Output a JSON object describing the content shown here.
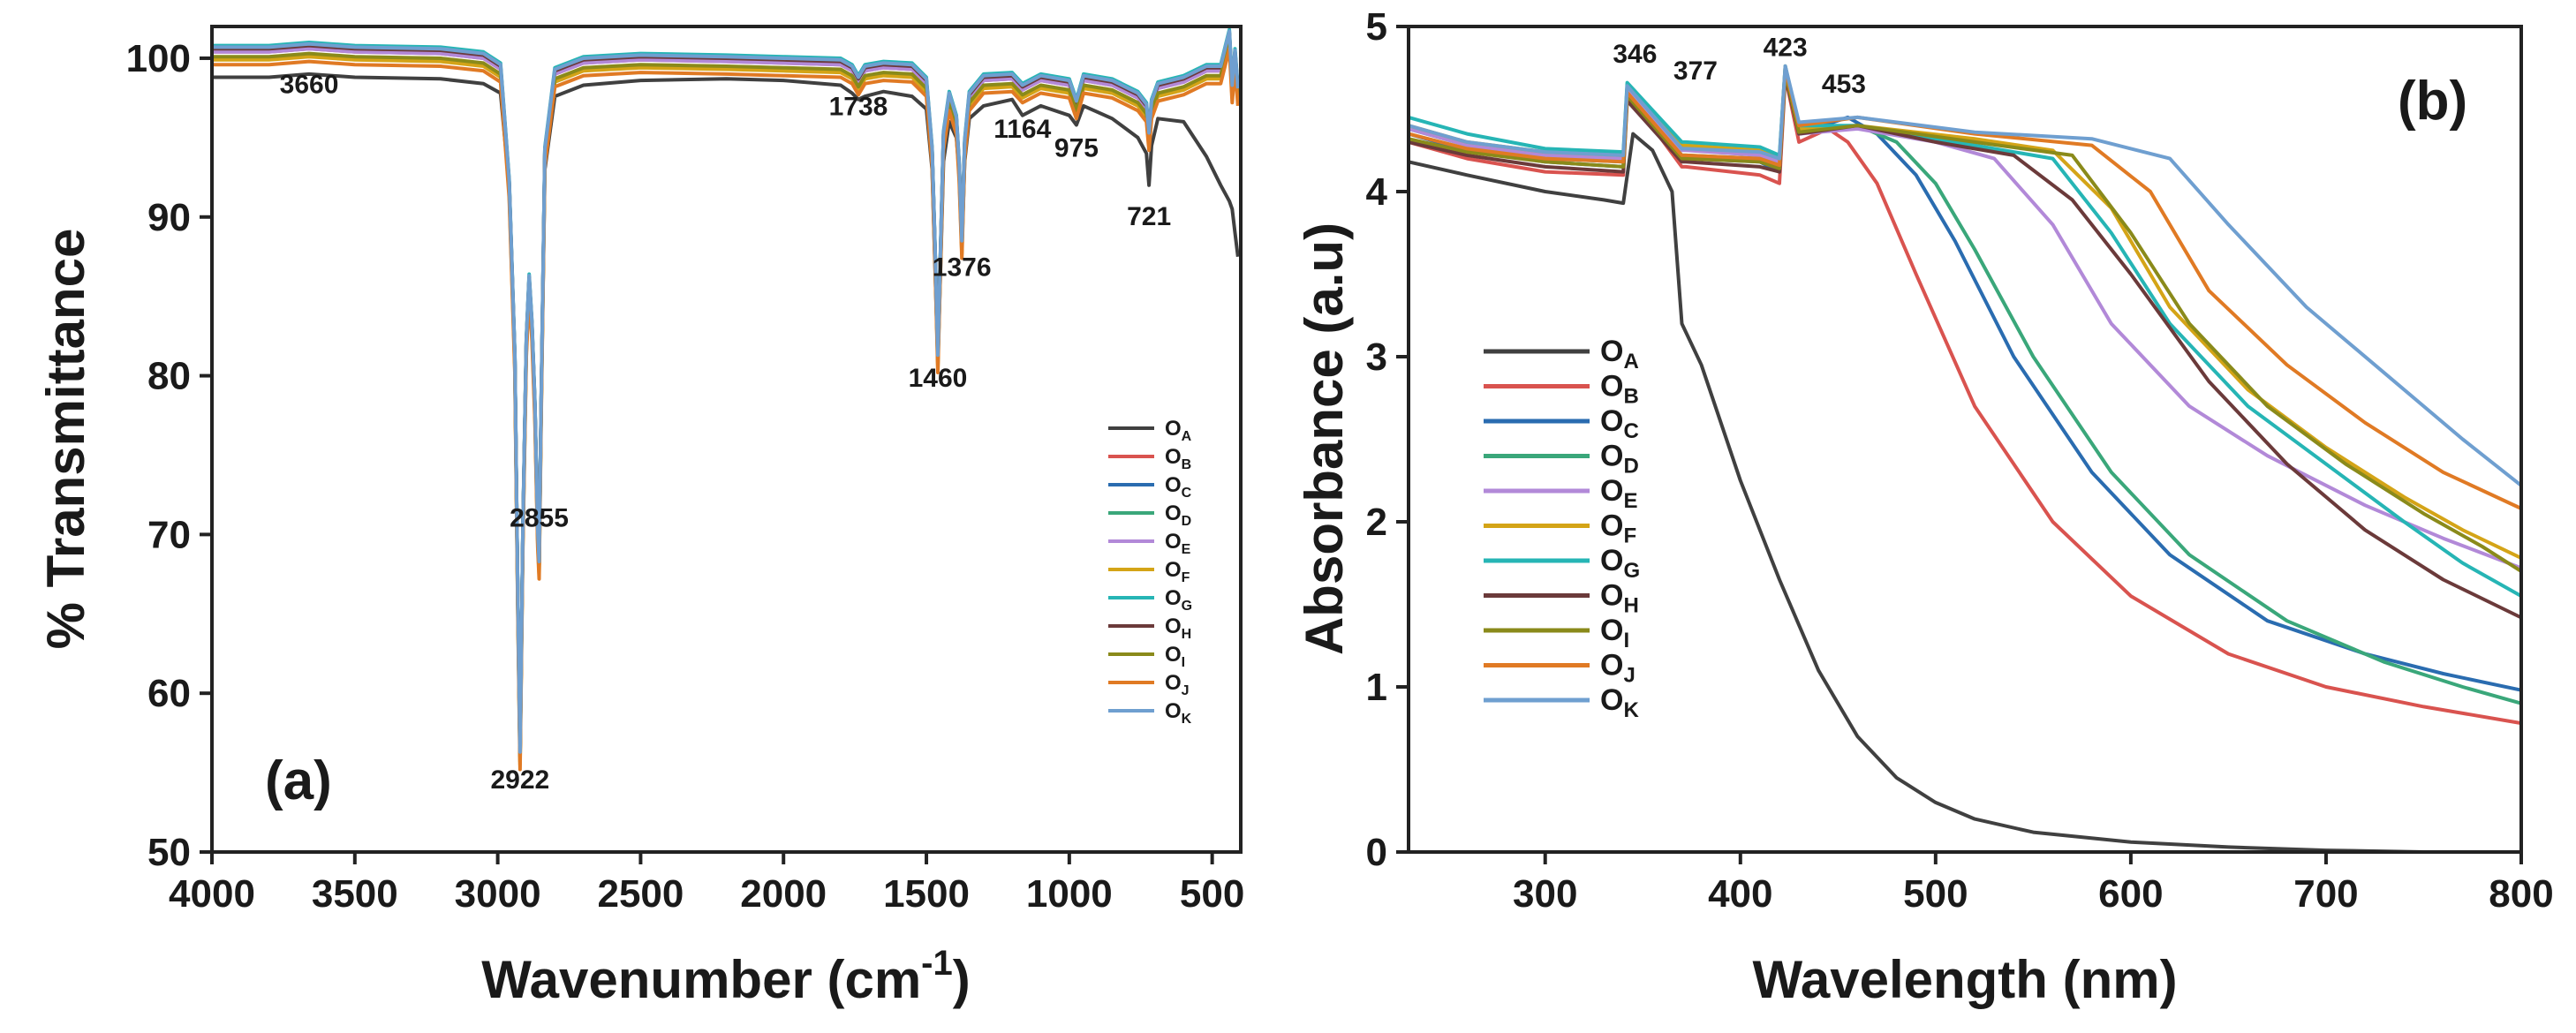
{
  "chart_data": [
    {
      "panel": "(a)",
      "type": "line",
      "title": "",
      "xlabel": "Wavenumber (cm",
      "xlabel_sup": "-1",
      "xlabel_end": ")",
      "ylabel": "% Transmittance",
      "xlim": [
        4000,
        400
      ],
      "ylim": [
        50,
        102
      ],
      "xticks": [
        4000,
        3500,
        3000,
        2500,
        2000,
        1500,
        1000,
        500
      ],
      "yticks": [
        50,
        60,
        70,
        80,
        90,
        100
      ],
      "legend_position": "lower-right",
      "peak_annotations": [
        {
          "text": "3660",
          "x": 3660,
          "y": 97.8
        },
        {
          "text": "2922",
          "x": 2922,
          "y": 54.0
        },
        {
          "text": "2855",
          "x": 2855,
          "y": 70.5
        },
        {
          "text": "1738",
          "x": 1738,
          "y": 96.4
        },
        {
          "text": "1460",
          "x": 1460,
          "y": 79.3
        },
        {
          "text": "1376",
          "x": 1376,
          "y": 86.3
        },
        {
          "text": "1164",
          "x": 1164,
          "y": 95.0
        },
        {
          "text": "975",
          "x": 975,
          "y": 93.8
        },
        {
          "text": "721",
          "x": 721,
          "y": 89.5
        }
      ],
      "series": [
        {
          "name": "O",
          "sub": "A",
          "color": "#404040",
          "offset": -1.6,
          "values_ref": "ftir_A"
        },
        {
          "name": "O",
          "sub": "B",
          "color": "#d9534f",
          "offset": 0.0,
          "values_ref": "ftir"
        },
        {
          "name": "O",
          "sub": "C",
          "color": "#2a6cb0",
          "offset": 0.1,
          "values_ref": "ftir"
        },
        {
          "name": "O",
          "sub": "D",
          "color": "#3aa77a",
          "offset": 0.2,
          "values_ref": "ftir"
        },
        {
          "name": "O",
          "sub": "E",
          "color": "#b289d8",
          "offset": 0.0,
          "values_ref": "ftir"
        },
        {
          "name": "O",
          "sub": "F",
          "color": "#d4a417",
          "offset": -0.5,
          "values_ref": "ftir"
        },
        {
          "name": "O",
          "sub": "G",
          "color": "#26b5b5",
          "offset": 0.4,
          "values_ref": "ftir"
        },
        {
          "name": "O",
          "sub": "H",
          "color": "#6b3a3a",
          "offset": 0.2,
          "values_ref": "ftir"
        },
        {
          "name": "O",
          "sub": "I",
          "color": "#8a8a1a",
          "offset": -0.3,
          "values_ref": "ftir"
        },
        {
          "name": "O",
          "sub": "J",
          "color": "#e07a24",
          "offset": -0.8,
          "values_ref": "ftir"
        },
        {
          "name": "O",
          "sub": "K",
          "color": "#6f9fd0",
          "offset": 0.3,
          "values_ref": "ftir"
        }
      ],
      "ftir_base": {
        "x": [
          4000,
          3800,
          3660,
          3500,
          3200,
          3050,
          2990,
          2960,
          2940,
          2930,
          2922,
          2912,
          2900,
          2890,
          2880,
          2870,
          2860,
          2855,
          2848,
          2835,
          2800,
          2700,
          2500,
          2200,
          2000,
          1800,
          1760,
          1738,
          1715,
          1650,
          1550,
          1500,
          1480,
          1470,
          1460,
          1450,
          1440,
          1420,
          1395,
          1385,
          1376,
          1366,
          1350,
          1300,
          1200,
          1164,
          1100,
          1000,
          975,
          950,
          850,
          760,
          730,
          721,
          712,
          690,
          600,
          520,
          470,
          440,
          430,
          420,
          410
        ],
        "y": [
          100.4,
          100.4,
          100.6,
          100.4,
          100.3,
          100.0,
          99.3,
          92.0,
          81.0,
          66.0,
          56.0,
          70.0,
          82.0,
          86.0,
          83.0,
          78.0,
          70.0,
          68.0,
          78.0,
          94.0,
          99.0,
          99.7,
          99.9,
          99.8,
          99.7,
          99.6,
          99.2,
          98.5,
          99.2,
          99.4,
          99.3,
          98.4,
          94.0,
          88.0,
          81.0,
          88.0,
          95.0,
          97.5,
          96.0,
          93.0,
          88.2,
          94.5,
          97.5,
          98.6,
          98.7,
          98.0,
          98.6,
          98.3,
          97.0,
          98.6,
          98.3,
          97.5,
          96.8,
          95.0,
          97.0,
          98.1,
          98.5,
          99.2,
          99.2,
          101.4,
          98.0,
          100.2,
          97.8
        ]
      },
      "ftir_A": {
        "x": [
          4000,
          3800,
          3660,
          3500,
          3200,
          3050,
          2990,
          2960,
          2940,
          2930,
          2922,
          2912,
          2900,
          2890,
          2880,
          2870,
          2860,
          2855,
          2848,
          2835,
          2800,
          2700,
          2500,
          2200,
          2000,
          1800,
          1760,
          1738,
          1715,
          1650,
          1550,
          1500,
          1480,
          1470,
          1460,
          1450,
          1440,
          1420,
          1395,
          1385,
          1376,
          1366,
          1350,
          1300,
          1200,
          1164,
          1100,
          1000,
          975,
          950,
          850,
          760,
          730,
          721,
          712,
          690,
          600,
          520,
          470,
          440,
          430,
          420,
          410
        ],
        "y": [
          98.8,
          98.8,
          99.0,
          98.8,
          98.7,
          98.4,
          97.8,
          92.0,
          81.0,
          66.0,
          56.0,
          70.0,
          82.0,
          86.0,
          83.0,
          78.0,
          70.0,
          68.0,
          78.0,
          93.0,
          97.6,
          98.3,
          98.6,
          98.7,
          98.6,
          98.3,
          97.8,
          97.4,
          97.6,
          97.9,
          97.6,
          96.8,
          93.0,
          87.0,
          81.0,
          87.0,
          93.5,
          96.0,
          95.0,
          92.8,
          88.2,
          93.5,
          96.2,
          97.0,
          97.4,
          96.4,
          97.0,
          96.4,
          95.8,
          97.0,
          96.2,
          95.0,
          94.0,
          92.0,
          94.5,
          96.2,
          96.0,
          93.8,
          92.0,
          91.0,
          90.5,
          89.0,
          87.5
        ]
      }
    },
    {
      "panel": "(b)",
      "type": "line",
      "title": "",
      "xlabel": "Wavelength (nm)",
      "ylabel": "Absorbance (a.u)",
      "xlim": [
        230,
        800
      ],
      "ylim": [
        0,
        5
      ],
      "xticks": [
        300,
        400,
        500,
        600,
        700,
        800
      ],
      "yticks": [
        0,
        1,
        2,
        3,
        4,
        5
      ],
      "legend_position": "middle-left",
      "peak_annotations": [
        {
          "text": "346",
          "x": 346,
          "y": 4.78
        },
        {
          "text": "377",
          "x": 377,
          "y": 4.68
        },
        {
          "text": "423",
          "x": 423,
          "y": 4.82
        },
        {
          "text": "453",
          "x": 453,
          "y": 4.6
        }
      ],
      "series": [
        {
          "name": "O",
          "sub": "A",
          "color": "#404040",
          "x": [
            230,
            260,
            300,
            330,
            340,
            345,
            355,
            365,
            370,
            380,
            400,
            420,
            440,
            460,
            480,
            500,
            520,
            550,
            600,
            650,
            700,
            750,
            800
          ],
          "y": [
            4.18,
            4.1,
            4.0,
            3.95,
            3.93,
            4.35,
            4.25,
            4.0,
            3.2,
            2.95,
            2.25,
            1.65,
            1.1,
            0.7,
            0.45,
            0.3,
            0.2,
            0.12,
            0.06,
            0.03,
            0.01,
            0.0,
            0.0
          ]
        },
        {
          "name": "O",
          "sub": "B",
          "color": "#d9534f",
          "x": [
            230,
            260,
            300,
            340,
            342,
            370,
            372,
            410,
            420,
            423,
            430,
            445,
            455,
            470,
            490,
            520,
            560,
            600,
            650,
            700,
            750,
            800
          ],
          "y": [
            4.3,
            4.2,
            4.12,
            4.1,
            4.6,
            4.15,
            4.15,
            4.1,
            4.05,
            4.7,
            4.3,
            4.38,
            4.3,
            4.05,
            3.5,
            2.7,
            2.0,
            1.55,
            1.2,
            1.0,
            0.88,
            0.78
          ]
        },
        {
          "name": "O",
          "sub": "C",
          "color": "#2a6cb0",
          "x": [
            230,
            260,
            300,
            340,
            342,
            370,
            372,
            410,
            420,
            423,
            430,
            455,
            470,
            490,
            510,
            540,
            580,
            620,
            670,
            720,
            760,
            800
          ],
          "y": [
            4.35,
            4.25,
            4.18,
            4.15,
            4.6,
            4.2,
            4.2,
            4.18,
            4.12,
            4.72,
            4.35,
            4.45,
            4.35,
            4.1,
            3.7,
            3.0,
            2.3,
            1.8,
            1.4,
            1.2,
            1.08,
            0.98
          ]
        },
        {
          "name": "O",
          "sub": "D",
          "color": "#3aa77a",
          "x": [
            230,
            260,
            300,
            340,
            342,
            370,
            372,
            410,
            420,
            423,
            430,
            460,
            480,
            500,
            520,
            550,
            590,
            630,
            680,
            730,
            770,
            800
          ],
          "y": [
            4.38,
            4.28,
            4.2,
            4.18,
            4.62,
            4.22,
            4.22,
            4.2,
            4.15,
            4.74,
            4.35,
            4.4,
            4.3,
            4.05,
            3.65,
            3.0,
            2.3,
            1.8,
            1.4,
            1.15,
            1.0,
            0.9
          ]
        },
        {
          "name": "O",
          "sub": "E",
          "color": "#b289d8",
          "x": [
            230,
            260,
            300,
            340,
            342,
            370,
            372,
            410,
            420,
            423,
            430,
            460,
            500,
            530,
            560,
            590,
            630,
            670,
            720,
            760,
            800
          ],
          "y": [
            4.38,
            4.28,
            4.22,
            4.2,
            4.62,
            4.25,
            4.25,
            4.22,
            4.18,
            4.74,
            4.35,
            4.38,
            4.3,
            4.2,
            3.8,
            3.2,
            2.7,
            2.4,
            2.1,
            1.9,
            1.72
          ]
        },
        {
          "name": "O",
          "sub": "F",
          "color": "#d4a417",
          "x": [
            230,
            260,
            300,
            340,
            342,
            370,
            372,
            410,
            420,
            423,
            430,
            460,
            520,
            560,
            590,
            620,
            660,
            700,
            740,
            770,
            800
          ],
          "y": [
            4.4,
            4.3,
            4.24,
            4.22,
            4.64,
            4.28,
            4.28,
            4.25,
            4.2,
            4.76,
            4.38,
            4.4,
            4.32,
            4.25,
            3.9,
            3.3,
            2.8,
            2.45,
            2.15,
            1.95,
            1.78
          ]
        },
        {
          "name": "O",
          "sub": "G",
          "color": "#26b5b5",
          "x": [
            230,
            260,
            300,
            340,
            342,
            370,
            372,
            410,
            420,
            423,
            430,
            460,
            520,
            560,
            590,
            620,
            660,
            700,
            740,
            770,
            800
          ],
          "y": [
            4.45,
            4.35,
            4.26,
            4.24,
            4.66,
            4.3,
            4.3,
            4.27,
            4.22,
            4.76,
            4.4,
            4.4,
            4.28,
            4.2,
            3.75,
            3.2,
            2.7,
            2.35,
            2.0,
            1.75,
            1.55
          ]
        },
        {
          "name": "O",
          "sub": "H",
          "color": "#6b3a3a",
          "x": [
            230,
            260,
            300,
            340,
            342,
            370,
            372,
            410,
            420,
            423,
            430,
            460,
            500,
            540,
            570,
            600,
            640,
            680,
            720,
            760,
            800
          ],
          "y": [
            4.3,
            4.22,
            4.15,
            4.12,
            4.55,
            4.18,
            4.18,
            4.15,
            4.12,
            4.7,
            4.35,
            4.4,
            4.3,
            4.22,
            3.95,
            3.5,
            2.85,
            2.35,
            1.95,
            1.65,
            1.42
          ]
        },
        {
          "name": "O",
          "sub": "I",
          "color": "#8a8a1a",
          "x": [
            230,
            260,
            300,
            340,
            342,
            370,
            372,
            410,
            420,
            423,
            430,
            460,
            520,
            570,
            600,
            630,
            670,
            710,
            750,
            780,
            800
          ],
          "y": [
            4.32,
            4.24,
            4.18,
            4.15,
            4.58,
            4.2,
            4.2,
            4.18,
            4.14,
            4.72,
            4.36,
            4.4,
            4.3,
            4.22,
            3.75,
            3.2,
            2.7,
            2.35,
            2.05,
            1.85,
            1.7
          ]
        },
        {
          "name": "O",
          "sub": "J",
          "color": "#e07a24",
          "x": [
            230,
            260,
            300,
            340,
            342,
            370,
            372,
            410,
            420,
            423,
            430,
            460,
            520,
            580,
            610,
            640,
            680,
            720,
            760,
            800
          ],
          "y": [
            4.35,
            4.26,
            4.2,
            4.18,
            4.6,
            4.22,
            4.22,
            4.2,
            4.16,
            4.74,
            4.4,
            4.45,
            4.35,
            4.28,
            4.0,
            3.4,
            2.95,
            2.6,
            2.3,
            2.08
          ]
        },
        {
          "name": "O",
          "sub": "K",
          "color": "#6f9fd0",
          "x": [
            230,
            260,
            300,
            340,
            342,
            370,
            372,
            410,
            420,
            423,
            430,
            460,
            520,
            580,
            620,
            650,
            690,
            730,
            770,
            800
          ],
          "y": [
            4.4,
            4.3,
            4.24,
            4.22,
            4.64,
            4.26,
            4.26,
            4.24,
            4.2,
            4.76,
            4.42,
            4.45,
            4.36,
            4.32,
            4.2,
            3.8,
            3.3,
            2.9,
            2.5,
            2.22
          ]
        }
      ]
    }
  ]
}
